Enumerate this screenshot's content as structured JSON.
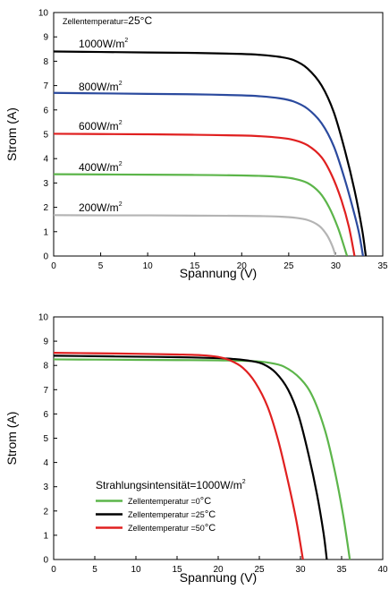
{
  "chart_data": [
    {
      "type": "line",
      "xlabel": "Spannung (V)",
      "ylabel": "Strom (A)",
      "xlim": [
        0,
        35
      ],
      "ylim": [
        0,
        10
      ],
      "xticks": [
        "0",
        "5",
        "10",
        "15",
        "20",
        "25",
        "30",
        "35"
      ],
      "yticks": [
        "0",
        "1",
        "2",
        "3",
        "4",
        "5",
        "6",
        "7",
        "8",
        "9",
        "10"
      ],
      "grid": false,
      "annotation": "Zellentemperatur=25°C",
      "series": [
        {
          "name": "1000W/m²",
          "name_base": "1000W/m",
          "color": "#000000",
          "x": [
            0,
            5,
            10,
            15,
            20,
            22,
            24,
            25.5,
            27,
            28.5,
            29.8,
            31,
            32,
            32.8,
            33.2
          ],
          "y": [
            8.4,
            8.38,
            8.36,
            8.34,
            8.3,
            8.26,
            8.18,
            8.05,
            7.7,
            7.0,
            5.9,
            4.3,
            2.7,
            1.1,
            0
          ]
        },
        {
          "name": "800W/m²",
          "name_base": "800W/m",
          "color": "#2b4a9e",
          "x": [
            0,
            5,
            10,
            15,
            20,
            22,
            24,
            25.5,
            27,
            28.5,
            29.8,
            31,
            32,
            32.5,
            32.9
          ],
          "y": [
            6.7,
            6.68,
            6.66,
            6.64,
            6.6,
            6.56,
            6.48,
            6.35,
            6.05,
            5.45,
            4.5,
            3.1,
            1.7,
            0.9,
            0
          ]
        },
        {
          "name": "600W/m²",
          "name_base": "600W/m",
          "color": "#e02020",
          "x": [
            0,
            5,
            10,
            15,
            20,
            22,
            24,
            25.5,
            27,
            28.5,
            29.6,
            30.6,
            31.4,
            32.0
          ],
          "y": [
            5.02,
            5.01,
            5.0,
            4.98,
            4.95,
            4.92,
            4.86,
            4.77,
            4.55,
            4.05,
            3.3,
            2.3,
            1.2,
            0
          ]
        },
        {
          "name": "400W/m²",
          "name_base": "400W/m",
          "color": "#5cb54a",
          "x": [
            0,
            5,
            10,
            15,
            20,
            22,
            24,
            25.5,
            27,
            28.3,
            29.3,
            30.2,
            30.8,
            31.2
          ],
          "y": [
            3.36,
            3.35,
            3.34,
            3.33,
            3.31,
            3.29,
            3.25,
            3.18,
            3.0,
            2.6,
            2.0,
            1.2,
            0.5,
            0
          ]
        },
        {
          "name": "200W/m²",
          "name_base": "200W/m",
          "color": "#b4b4b4",
          "x": [
            0,
            5,
            10,
            15,
            20,
            22,
            24,
            25.5,
            27,
            28.2,
            29.0,
            29.6,
            30.0
          ],
          "y": [
            1.68,
            1.67,
            1.67,
            1.66,
            1.65,
            1.64,
            1.62,
            1.58,
            1.48,
            1.25,
            0.9,
            0.45,
            0
          ]
        }
      ]
    },
    {
      "type": "line",
      "xlabel": "Spannung (V)",
      "ylabel": "Strom (A)",
      "xlim": [
        0,
        40
      ],
      "ylim": [
        0,
        10
      ],
      "xticks": [
        "0",
        "5",
        "10",
        "15",
        "20",
        "25",
        "30",
        "35",
        "40"
      ],
      "yticks": [
        "0",
        "1",
        "2",
        "3",
        "4",
        "5",
        "6",
        "7",
        "8",
        "9",
        "10"
      ],
      "grid": false,
      "legend_title": "Strahlungsintensität=1000W/m²",
      "legend_title_base": "Strahlungsintensität=1000W/m",
      "legend_position": "bottom-left",
      "series": [
        {
          "name": "Zellentemperatur =0°C",
          "name_base": "Zellentemperatur =0",
          "name_unit": "°C",
          "color": "#5cb54a",
          "x": [
            0,
            5,
            10,
            15,
            20,
            24,
            26,
            28,
            30,
            31.5,
            33,
            34.2,
            35.2,
            36.0
          ],
          "y": [
            8.25,
            8.24,
            8.23,
            8.22,
            8.21,
            8.18,
            8.12,
            7.95,
            7.45,
            6.7,
            5.3,
            3.6,
            1.8,
            0
          ]
        },
        {
          "name": "Zellentemperatur =25°C",
          "name_base": "Zellentemperatur =25",
          "name_unit": "°C",
          "color": "#000000",
          "x": [
            0,
            5,
            10,
            15,
            20,
            22,
            24,
            25.5,
            27,
            28.5,
            29.8,
            31,
            32,
            32.8,
            33.2
          ],
          "y": [
            8.4,
            8.38,
            8.36,
            8.34,
            8.3,
            8.26,
            8.18,
            8.05,
            7.7,
            7.0,
            5.9,
            4.3,
            2.7,
            1.1,
            0
          ]
        },
        {
          "name": "Zellentemperatur =50°C",
          "name_base": "Zellentemperatur =50",
          "name_unit": "°C",
          "color": "#e02020",
          "x": [
            0,
            5,
            10,
            15,
            18,
            20,
            21.5,
            23,
            24.5,
            26,
            27.3,
            28.5,
            29.5,
            30.3
          ],
          "y": [
            8.52,
            8.5,
            8.48,
            8.45,
            8.42,
            8.35,
            8.2,
            7.9,
            7.3,
            6.3,
            4.9,
            3.2,
            1.6,
            0
          ]
        }
      ]
    }
  ]
}
